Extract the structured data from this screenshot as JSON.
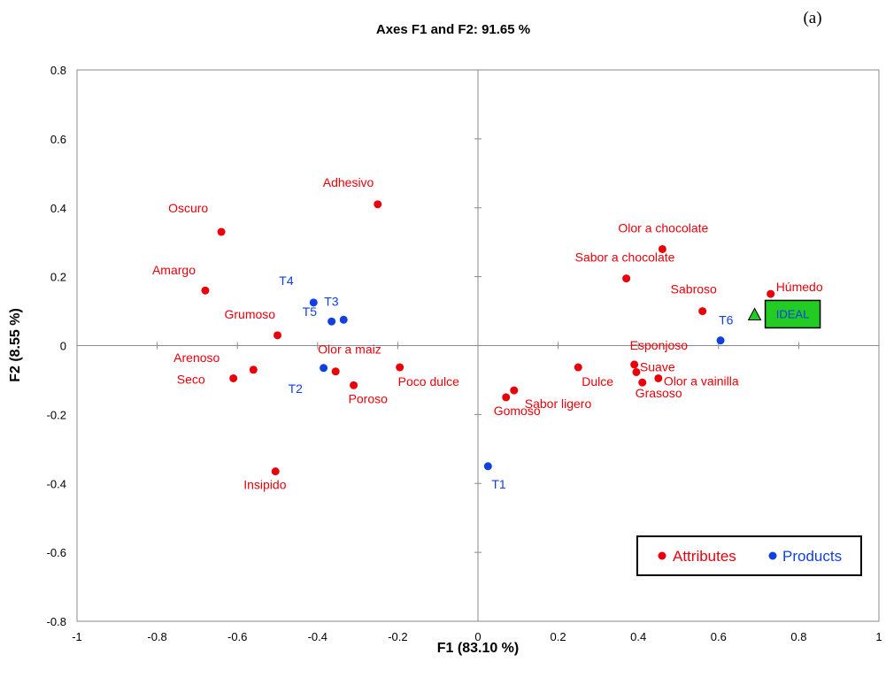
{
  "chart_data": {
    "type": "scatter",
    "title": "Axes F1 and F2: 91.65 %",
    "panel_label": "(a)",
    "xlabel": "F1 (83.10 %)",
    "ylabel": "F2 (8.55 %)",
    "xlim": [
      -1,
      1
    ],
    "ylim": [
      -0.8,
      0.8
    ],
    "xticks": [
      "-1",
      "-0.8",
      "-0.6",
      "-0.4",
      "-0.2",
      "0",
      "0.2",
      "0.4",
      "0.6",
      "0.8",
      "1"
    ],
    "yticks": [
      "-0.8",
      "-0.6",
      "-0.4",
      "-0.2",
      "0",
      "0.2",
      "0.4",
      "0.6",
      "0.8"
    ],
    "legend_position": "bottom-right",
    "colors": {
      "attributes": "#e8000b",
      "products": "#1040e0",
      "ideal_fill": "#22cc22",
      "ideal_text": "#1040e0"
    },
    "series": [
      {
        "name": "Attributes",
        "points": [
          {
            "label": "Adhesivo",
            "x": -0.25,
            "y": 0.41
          },
          {
            "label": "Oscuro",
            "x": -0.64,
            "y": 0.33
          },
          {
            "label": "Amargo",
            "x": -0.68,
            "y": 0.16
          },
          {
            "label": "Grumoso",
            "x": -0.5,
            "y": 0.03
          },
          {
            "label": "Arenoso",
            "x": -0.56,
            "y": -0.07
          },
          {
            "label": "Seco",
            "x": -0.61,
            "y": -0.095
          },
          {
            "label": "Olor a maiz",
            "x": -0.355,
            "y": -0.075
          },
          {
            "label": "Poroso",
            "x": -0.31,
            "y": -0.115
          },
          {
            "label": "Poco dulce",
            "x": -0.195,
            "y": -0.063
          },
          {
            "label": "Insipido",
            "x": -0.505,
            "y": -0.365
          },
          {
            "label": "Olor a chocolate",
            "x": 0.46,
            "y": 0.28
          },
          {
            "label": "Sabor a chocolate",
            "x": 0.37,
            "y": 0.195
          },
          {
            "label": "Sabroso",
            "x": 0.56,
            "y": 0.1
          },
          {
            "label": "Húmedo",
            "x": 0.73,
            "y": 0.15
          },
          {
            "label": "Esponjoso",
            "x": 0.39,
            "y": -0.055
          },
          {
            "label": "Suave",
            "x": 0.395,
            "y": -0.077
          },
          {
            "label": "Grasoso",
            "x": 0.41,
            "y": -0.107
          },
          {
            "label": "Olor a vainilla",
            "x": 0.45,
            "y": -0.095
          },
          {
            "label": "Dulce",
            "x": 0.25,
            "y": -0.063
          },
          {
            "label": "Sabor ligero",
            "x": 0.09,
            "y": -0.13
          },
          {
            "label": "Gomoso",
            "x": 0.07,
            "y": -0.15
          }
        ]
      },
      {
        "name": "Products",
        "points": [
          {
            "label": "T4",
            "x": -0.41,
            "y": 0.125
          },
          {
            "label": "T3",
            "x": -0.335,
            "y": 0.075
          },
          {
            "label": "T5",
            "x": -0.365,
            "y": 0.07
          },
          {
            "label": "T2",
            "x": -0.385,
            "y": -0.065
          },
          {
            "label": "T6",
            "x": 0.605,
            "y": 0.015
          },
          {
            "label": "T1",
            "x": 0.025,
            "y": -0.35
          }
        ]
      }
    ],
    "ideal": {
      "label": "IDEAL",
      "x": 0.69,
      "y": 0.09
    }
  }
}
